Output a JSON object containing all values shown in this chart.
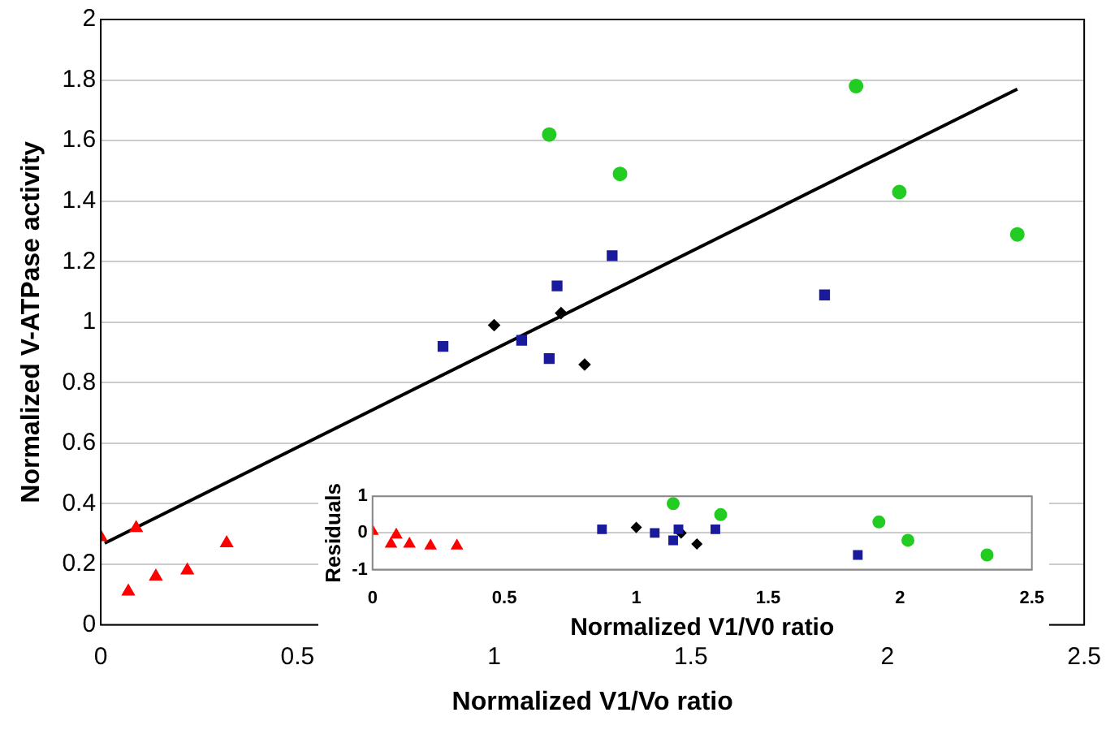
{
  "chart_data": [
    {
      "type": "scatter",
      "xlabel": "Normalized V1/Vo ratio",
      "ylabel": "Normalized V-ATPase activity",
      "xlim": [
        0,
        2.5
      ],
      "xticks": [
        0,
        0.5,
        1,
        1.5,
        2,
        2.5
      ],
      "ylim": [
        0,
        2
      ],
      "yticks": [
        0,
        0.2,
        0.4,
        0.6,
        0.8,
        1,
        1.2,
        1.4,
        1.6,
        1.8,
        2
      ],
      "grid": "y",
      "legend": false,
      "series": [
        {
          "color": "#ff0000",
          "marker": "triangle",
          "x": [
            0.0,
            0.07,
            0.09,
            0.14,
            0.22,
            0.32
          ],
          "values": [
            0.29,
            0.11,
            0.32,
            0.16,
            0.18,
            0.27
          ]
        },
        {
          "color": "#1a1a9c",
          "marker": "square",
          "x": [
            0.87,
            1.07,
            1.14,
            1.16,
            1.3,
            1.84
          ],
          "values": [
            0.92,
            0.94,
            0.88,
            1.12,
            1.22,
            1.09
          ]
        },
        {
          "color": "#000000",
          "marker": "diamond",
          "x": [
            1.0,
            1.17,
            1.23
          ],
          "values": [
            0.99,
            1.03,
            0.86
          ]
        },
        {
          "color": "#22cc22",
          "marker": "circle",
          "x": [
            1.14,
            1.32,
            1.92,
            2.03,
            2.33
          ],
          "values": [
            1.62,
            1.49,
            1.78,
            1.43,
            1.29
          ]
        },
        {
          "type": "line",
          "color": "#000000",
          "marker": "none",
          "x": [
            0.01,
            2.33
          ],
          "values": [
            0.27,
            1.77
          ]
        }
      ]
    },
    {
      "type": "scatter",
      "xlabel": "Normalized V1/V0 ratio",
      "ylabel": "Residuals",
      "xlim": [
        0,
        2.5
      ],
      "xticks": [
        0,
        0.5,
        1,
        1.5,
        2,
        2.5
      ],
      "ylim": [
        -1,
        1
      ],
      "yticks": [
        -1,
        0,
        1
      ],
      "grid": "y",
      "legend": false,
      "series": [
        {
          "color": "#ff0000",
          "marker": "triangle",
          "x": [
            0.0,
            0.07,
            0.09,
            0.14,
            0.22,
            0.32
          ],
          "values": [
            0.05,
            -0.3,
            -0.05,
            -0.3,
            -0.35,
            -0.35
          ]
        },
        {
          "color": "#1a1a9c",
          "marker": "square",
          "x": [
            0.87,
            1.07,
            1.14,
            1.16,
            1.3,
            1.84
          ],
          "values": [
            0.1,
            0.0,
            -0.2,
            0.1,
            0.1,
            -0.6
          ]
        },
        {
          "color": "#000000",
          "marker": "diamond",
          "x": [
            1.0,
            1.17,
            1.23
          ],
          "values": [
            0.15,
            0.0,
            -0.3
          ]
        },
        {
          "color": "#22cc22",
          "marker": "circle",
          "x": [
            1.14,
            1.32,
            1.92,
            2.03,
            2.33
          ],
          "values": [
            0.8,
            0.5,
            0.3,
            -0.2,
            -0.6
          ]
        }
      ]
    }
  ]
}
